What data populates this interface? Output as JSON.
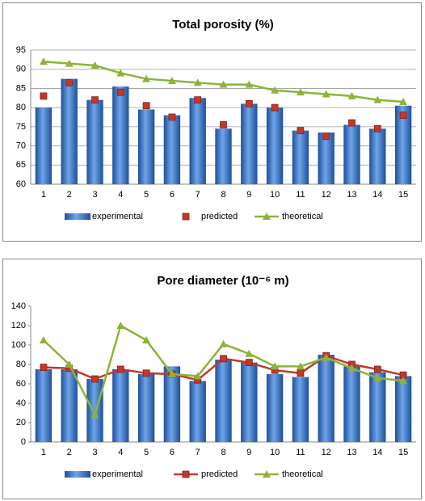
{
  "chart_data": [
    {
      "type": "bar",
      "title": "Total porosity (%)",
      "categories": [
        "1",
        "2",
        "3",
        "4",
        "5",
        "6",
        "7",
        "8",
        "9",
        "10",
        "11",
        "12",
        "13",
        "14",
        "15"
      ],
      "ylim": [
        60,
        95
      ],
      "yticks": [
        60,
        65,
        70,
        75,
        80,
        85,
        90,
        95
      ],
      "grid": true,
      "series": [
        {
          "name": "experimental",
          "kind": "bar",
          "color": "#2f6fc0",
          "values": [
            80,
            87.5,
            82,
            85.5,
            79.5,
            78,
            82.5,
            74.5,
            81,
            80,
            74,
            73.5,
            75.5,
            74.5,
            80.5
          ]
        },
        {
          "name": "predicted",
          "kind": "marker",
          "line": false,
          "color": "#c0392b",
          "values": [
            83,
            86.5,
            82,
            84,
            80.5,
            77.5,
            82,
            75.5,
            81,
            80,
            74,
            72.5,
            76,
            74.5,
            78
          ]
        },
        {
          "name": "theoretical",
          "kind": "triangle",
          "line": true,
          "color": "#8db33a",
          "values": [
            92,
            91.5,
            91,
            89,
            87.5,
            87,
            86.5,
            86,
            86,
            84.5,
            84,
            83.5,
            83,
            82,
            81.5
          ]
        }
      ]
    },
    {
      "type": "bar",
      "title": "Pore diameter (10⁻⁶ m)",
      "categories": [
        "1",
        "2",
        "3",
        "4",
        "5",
        "6",
        "7",
        "8",
        "9",
        "10",
        "11",
        "12",
        "13",
        "14",
        "15"
      ],
      "ylim": [
        0,
        140
      ],
      "yticks": [
        0,
        20,
        40,
        60,
        80,
        100,
        120,
        140
      ],
      "grid": false,
      "series": [
        {
          "name": "experimental",
          "kind": "bar",
          "color": "#2f6fc0",
          "values": [
            75,
            75,
            65,
            75,
            70,
            78,
            63,
            85,
            82,
            70,
            67,
            90,
            78,
            72,
            68
          ]
        },
        {
          "name": "predicted",
          "kind": "marker",
          "line": true,
          "color": "#c0392b",
          "values": [
            77,
            76,
            65,
            75,
            71,
            70,
            64,
            86,
            82,
            74,
            71,
            89,
            80,
            75,
            69
          ]
        },
        {
          "name": "theoretical",
          "kind": "triangle",
          "line": true,
          "color": "#8db33a",
          "values": [
            105,
            80,
            28,
            120,
            105,
            70,
            68,
            101,
            91,
            78,
            78,
            87,
            76,
            66,
            63
          ]
        }
      ]
    }
  ]
}
